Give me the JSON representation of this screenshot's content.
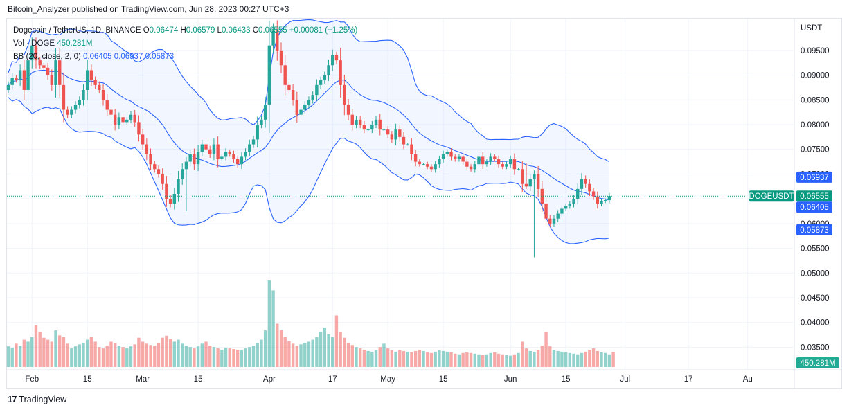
{
  "header": {
    "publisher": "Bitcoin_Analyzer published on TradingView.com, Jun 28, 2023 00:27 UTC+3"
  },
  "legend": {
    "symbol": "Dogecoin / TetherUS, 1D, BINANCE",
    "ohlc": [
      {
        "label": "O",
        "value": "0.06474"
      },
      {
        "label": "H",
        "value": "0.06579"
      },
      {
        "label": "L",
        "value": "0.06433"
      },
      {
        "label": "C",
        "value": "0.06555"
      }
    ],
    "change": "+0.00081 (+1.25%)",
    "vol_label": "Vol · DOGE",
    "vol_value": "450.281M",
    "bb_label": "BB (20, close, 2, 0)",
    "bb_basis": "0.06405",
    "bb_upper": "0.06937",
    "bb_lower": "0.05873"
  },
  "footer": {
    "brand": "TradingView",
    "logo": "17"
  },
  "colors": {
    "up": "#26a69a",
    "down": "#ef5350",
    "band_line": "#2962ff",
    "band_fill": "#2962ff",
    "vol_up": "#26a69a",
    "vol_down": "#ef5350",
    "price_line": "#089981",
    "grid": "#f0f3fa"
  },
  "chart_data": {
    "type": "candlestick",
    "currency_label": "USDT",
    "y_ticks": [
      "0.09500",
      "0.09000",
      "0.08500",
      "0.08000",
      "0.07500",
      "0.07000",
      "0.06500",
      "0.06000",
      "0.05500",
      "0.05000",
      "0.04500",
      "0.04000",
      "0.03500"
    ],
    "ylim": [
      0.031,
      0.101
    ],
    "x_ticks": [
      "Feb",
      "15",
      "Mar",
      "15",
      "Apr",
      "17",
      "May",
      "15",
      "Jun",
      "15",
      "Jul",
      "17",
      "Au"
    ],
    "price_labels": [
      {
        "text": "0.06937",
        "value": 0.06937,
        "kind": "band"
      },
      {
        "text": "DOGEUSDT",
        "value": 0.06555,
        "kind": "symbol"
      },
      {
        "text": "0.06555",
        "value": 0.06555,
        "kind": "last"
      },
      {
        "text": "0.06405",
        "value": 0.06405,
        "kind": "band"
      },
      {
        "text": "0.05873",
        "value": 0.05873,
        "kind": "band"
      }
    ],
    "volume_label": "450.281M",
    "last_close": 0.06555,
    "dates": [
      "2023-01-26",
      "2023-01-27",
      "2023-01-28",
      "2023-01-29",
      "2023-01-30",
      "2023-01-31",
      "2023-02-01",
      "2023-02-02",
      "2023-02-03",
      "2023-02-04",
      "2023-02-05",
      "2023-02-06",
      "2023-02-07",
      "2023-02-08",
      "2023-02-09",
      "2023-02-10",
      "2023-02-11",
      "2023-02-12",
      "2023-02-13",
      "2023-02-14",
      "2023-02-15",
      "2023-02-16",
      "2023-02-17",
      "2023-02-18",
      "2023-02-19",
      "2023-02-20",
      "2023-02-21",
      "2023-02-22",
      "2023-02-23",
      "2023-02-24",
      "2023-02-25",
      "2023-02-26",
      "2023-02-27",
      "2023-02-28",
      "2023-03-01",
      "2023-03-02",
      "2023-03-03",
      "2023-03-04",
      "2023-03-05",
      "2023-03-06",
      "2023-03-07",
      "2023-03-08",
      "2023-03-09",
      "2023-03-10",
      "2023-03-11",
      "2023-03-12",
      "2023-03-13",
      "2023-03-14",
      "2023-03-15",
      "2023-03-16",
      "2023-03-17",
      "2023-03-18",
      "2023-03-19",
      "2023-03-20",
      "2023-03-21",
      "2023-03-22",
      "2023-03-23",
      "2023-03-24",
      "2023-03-25",
      "2023-03-26",
      "2023-03-27",
      "2023-03-28",
      "2023-03-29",
      "2023-03-30",
      "2023-03-31",
      "2023-04-01",
      "2023-04-02",
      "2023-04-03",
      "2023-04-04",
      "2023-04-05",
      "2023-04-06",
      "2023-04-07",
      "2023-04-08",
      "2023-04-09",
      "2023-04-10",
      "2023-04-11",
      "2023-04-12",
      "2023-04-13",
      "2023-04-14",
      "2023-04-15",
      "2023-04-16",
      "2023-04-17",
      "2023-04-18",
      "2023-04-19",
      "2023-04-20",
      "2023-04-21",
      "2023-04-22",
      "2023-04-23",
      "2023-04-24",
      "2023-04-25",
      "2023-04-26",
      "2023-04-27",
      "2023-04-28",
      "2023-04-29",
      "2023-04-30",
      "2023-05-01",
      "2023-05-02",
      "2023-05-03",
      "2023-05-04",
      "2023-05-05",
      "2023-05-06",
      "2023-05-07",
      "2023-05-08",
      "2023-05-09",
      "2023-05-10",
      "2023-05-11",
      "2023-05-12",
      "2023-05-13",
      "2023-05-14",
      "2023-05-15",
      "2023-05-16",
      "2023-05-17",
      "2023-05-18",
      "2023-05-19",
      "2023-05-20",
      "2023-05-21",
      "2023-05-22",
      "2023-05-23",
      "2023-05-24",
      "2023-05-25",
      "2023-05-26",
      "2023-05-27",
      "2023-05-28",
      "2023-05-29",
      "2023-05-30",
      "2023-05-31",
      "2023-06-01",
      "2023-06-02",
      "2023-06-03",
      "2023-06-04",
      "2023-06-05",
      "2023-06-06",
      "2023-06-07",
      "2023-06-08",
      "2023-06-09",
      "2023-06-10",
      "2023-06-11",
      "2023-06-12",
      "2023-06-13",
      "2023-06-14",
      "2023-06-15",
      "2023-06-16",
      "2023-06-17",
      "2023-06-18",
      "2023-06-19",
      "2023-06-20",
      "2023-06-21",
      "2023-06-22",
      "2023-06-23",
      "2023-06-24",
      "2023-06-25",
      "2023-06-26",
      "2023-06-27"
    ],
    "close": [
      0.088,
      0.0895,
      0.089,
      0.091,
      0.087,
      0.093,
      0.096,
      0.093,
      0.092,
      0.0915,
      0.09,
      0.088,
      0.093,
      0.088,
      0.083,
      0.082,
      0.083,
      0.084,
      0.085,
      0.087,
      0.091,
      0.089,
      0.088,
      0.087,
      0.085,
      0.083,
      0.082,
      0.08,
      0.0815,
      0.0805,
      0.081,
      0.082,
      0.0805,
      0.078,
      0.076,
      0.074,
      0.072,
      0.071,
      0.07,
      0.068,
      0.065,
      0.064,
      0.066,
      0.069,
      0.071,
      0.0725,
      0.074,
      0.072,
      0.0745,
      0.076,
      0.075,
      0.074,
      0.076,
      0.073,
      0.0735,
      0.0745,
      0.074,
      0.073,
      0.072,
      0.0735,
      0.0745,
      0.076,
      0.077,
      0.08,
      0.081,
      0.084,
      0.096,
      0.099,
      0.095,
      0.092,
      0.088,
      0.087,
      0.085,
      0.082,
      0.083,
      0.084,
      0.085,
      0.086,
      0.088,
      0.089,
      0.09,
      0.092,
      0.094,
      0.093,
      0.088,
      0.084,
      0.082,
      0.08,
      0.081,
      0.08,
      0.079,
      0.079,
      0.08,
      0.081,
      0.079,
      0.079,
      0.078,
      0.077,
      0.079,
      0.0775,
      0.076,
      0.076,
      0.074,
      0.0725,
      0.072,
      0.072,
      0.0715,
      0.071,
      0.072,
      0.073,
      0.074,
      0.0745,
      0.0735,
      0.073,
      0.0735,
      0.0725,
      0.0715,
      0.071,
      0.072,
      0.0735,
      0.072,
      0.0725,
      0.0735,
      0.073,
      0.072,
      0.0715,
      0.072,
      0.073,
      0.071,
      0.071,
      0.068,
      0.0675,
      0.069,
      0.07,
      0.067,
      0.064,
      0.061,
      0.06,
      0.061,
      0.062,
      0.063,
      0.0635,
      0.064,
      0.065,
      0.067,
      0.069,
      0.068,
      0.0665,
      0.0655,
      0.064,
      0.0645,
      0.06474,
      0.06555
    ],
    "open": [
      0.087,
      0.088,
      0.0895,
      0.089,
      0.091,
      0.087,
      0.093,
      0.096,
      0.093,
      0.092,
      0.0915,
      0.09,
      0.088,
      0.093,
      0.088,
      0.083,
      0.082,
      0.083,
      0.084,
      0.085,
      0.087,
      0.091,
      0.089,
      0.088,
      0.087,
      0.085,
      0.083,
      0.082,
      0.08,
      0.0815,
      0.0805,
      0.081,
      0.082,
      0.0805,
      0.078,
      0.076,
      0.074,
      0.072,
      0.071,
      0.07,
      0.068,
      0.065,
      0.064,
      0.066,
      0.069,
      0.071,
      0.0725,
      0.074,
      0.072,
      0.0745,
      0.076,
      0.075,
      0.074,
      0.076,
      0.073,
      0.0735,
      0.0745,
      0.074,
      0.073,
      0.072,
      0.0735,
      0.0745,
      0.076,
      0.077,
      0.08,
      0.081,
      0.084,
      0.096,
      0.099,
      0.095,
      0.092,
      0.088,
      0.087,
      0.085,
      0.082,
      0.083,
      0.084,
      0.085,
      0.086,
      0.088,
      0.089,
      0.09,
      0.092,
      0.094,
      0.093,
      0.088,
      0.084,
      0.082,
      0.08,
      0.081,
      0.08,
      0.079,
      0.079,
      0.08,
      0.081,
      0.079,
      0.079,
      0.078,
      0.077,
      0.079,
      0.0775,
      0.076,
      0.076,
      0.074,
      0.0725,
      0.072,
      0.072,
      0.0715,
      0.071,
      0.072,
      0.073,
      0.074,
      0.0745,
      0.0735,
      0.073,
      0.0735,
      0.0725,
      0.0715,
      0.071,
      0.072,
      0.0735,
      0.072,
      0.0725,
      0.0735,
      0.073,
      0.072,
      0.0715,
      0.072,
      0.073,
      0.071,
      0.071,
      0.068,
      0.0675,
      0.069,
      0.07,
      0.067,
      0.064,
      0.061,
      0.06,
      0.061,
      0.062,
      0.063,
      0.0635,
      0.064,
      0.065,
      0.067,
      0.069,
      0.068,
      0.0665,
      0.0655,
      0.064,
      0.0645,
      0.06474
    ],
    "volume_millions": [
      620,
      580,
      700,
      640,
      820,
      760,
      900,
      1250,
      1050,
      880,
      820,
      760,
      1100,
      950,
      900,
      700,
      560,
      620,
      680,
      720,
      820,
      900,
      760,
      600,
      560,
      640,
      760,
      720,
      640,
      600,
      560,
      620,
      680,
      880,
      760,
      700,
      660,
      640,
      720,
      880,
      940,
      840,
      760,
      820,
      700,
      640,
      600,
      560,
      620,
      700,
      760,
      640,
      600,
      560,
      520,
      580,
      560,
      540,
      520,
      500,
      560,
      600,
      640,
      720,
      820,
      1100,
      2600,
      2300,
      1300,
      1100,
      900,
      780,
      700,
      640,
      680,
      720,
      760,
      820,
      900,
      1060,
      1180,
      980,
      900,
      1550,
      1050,
      880,
      720,
      660,
      600,
      560,
      520,
      480,
      460,
      520,
      600,
      700,
      560,
      500,
      460,
      500,
      480,
      460,
      440,
      480,
      520,
      480,
      440,
      420,
      460,
      500,
      480,
      460,
      440,
      400,
      380,
      420,
      440,
      420,
      400,
      380,
      360,
      380,
      420,
      440,
      400,
      380,
      360,
      340,
      380,
      420,
      760,
      560,
      480,
      460,
      520,
      640,
      1050,
      620,
      520,
      480,
      460,
      440,
      420,
      400,
      380,
      420,
      460,
      520,
      560,
      480,
      440,
      420,
      380,
      450
    ]
  }
}
